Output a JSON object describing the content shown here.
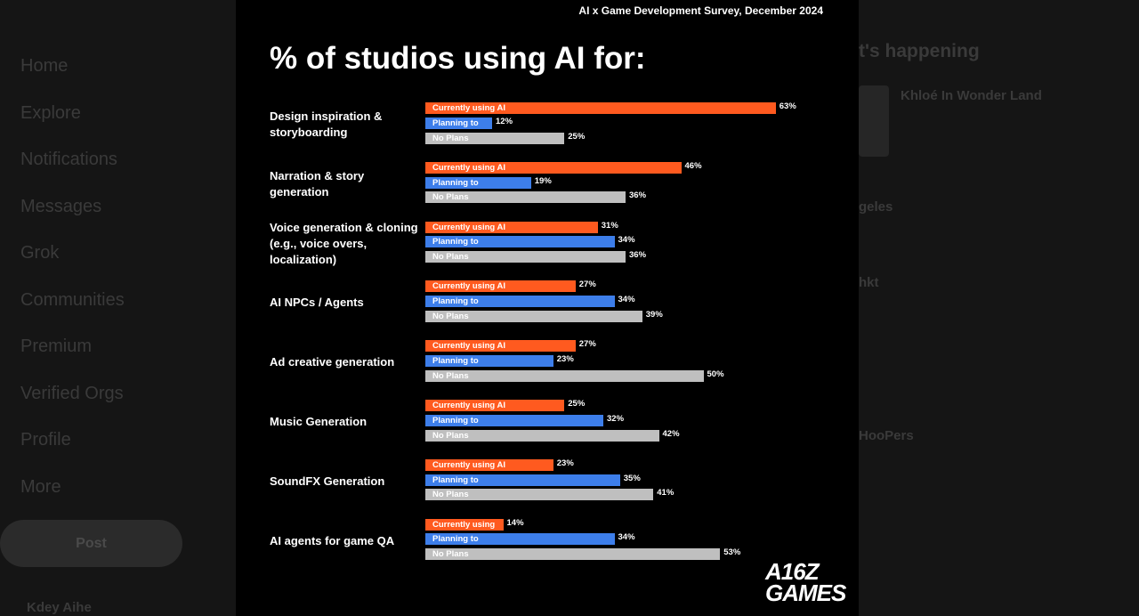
{
  "sidebar": {
    "nav": [
      "Home",
      "Explore",
      "Notifications",
      "Messages",
      "Grok",
      "Communities",
      "Premium",
      "Verified Orgs",
      "Profile",
      "More"
    ],
    "post_button": "Post",
    "account": "Kdey Aihe"
  },
  "trends": {
    "title": "t's happening",
    "items": [
      "Khloé In Wonder Land",
      "geles",
      "hkt",
      "HooPers"
    ]
  },
  "chart_data": {
    "type": "bar",
    "subtitle": "AI x Game Development Survey, December 2024",
    "title": "% of studios using AI for:",
    "categories": [
      "Design inspiration & storyboarding",
      "Narration & story generation",
      "Voice generation & cloning (e.g., voice overs, localization)",
      "AI NPCs / Agents",
      "Ad creative generation",
      "Music Generation",
      "SoundFX Generation",
      "AI agents for game QA"
    ],
    "series": [
      {
        "color": "#ff5a1f",
        "values": [
          63,
          46,
          31,
          27,
          27,
          25,
          23,
          14
        ],
        "value_labels": [
          "63%",
          "46%",
          "31%",
          "27%",
          "27%",
          "25%",
          "23%",
          "14%"
        ],
        "bar_labels": [
          "Currently using AI",
          "Currently using AI",
          "Currently using AI",
          "Currently using AI",
          "Currently using AI",
          "Currently using AI",
          "Currently using AI",
          "Currently using"
        ]
      },
      {
        "color": "#3d7eea",
        "values": [
          12,
          19,
          34,
          34,
          23,
          32,
          35,
          34
        ],
        "value_labels": [
          "12%",
          "19%",
          "34%",
          "34%",
          "23%",
          "32%",
          "35%",
          "34%"
        ],
        "bar_labels": [
          "Planning to",
          "Planning to",
          "Planning to",
          "Planning to",
          "Planning to",
          "Planning to",
          "Planning to",
          "Planning to"
        ]
      },
      {
        "color": "#bfbfbf",
        "values": [
          25,
          36,
          36,
          39,
          50,
          42,
          41,
          53
        ],
        "value_labels": [
          "25%",
          "36%",
          "36%",
          "39%",
          "50%",
          "42%",
          "41%",
          "53%"
        ],
        "bar_labels": [
          "No Plans",
          "No Plans",
          "No Plans",
          "No Plans",
          "No Plans",
          "No Plans",
          "No Plans",
          "No Plans"
        ]
      }
    ],
    "logo": [
      "A16Z",
      "GAMES"
    ]
  }
}
